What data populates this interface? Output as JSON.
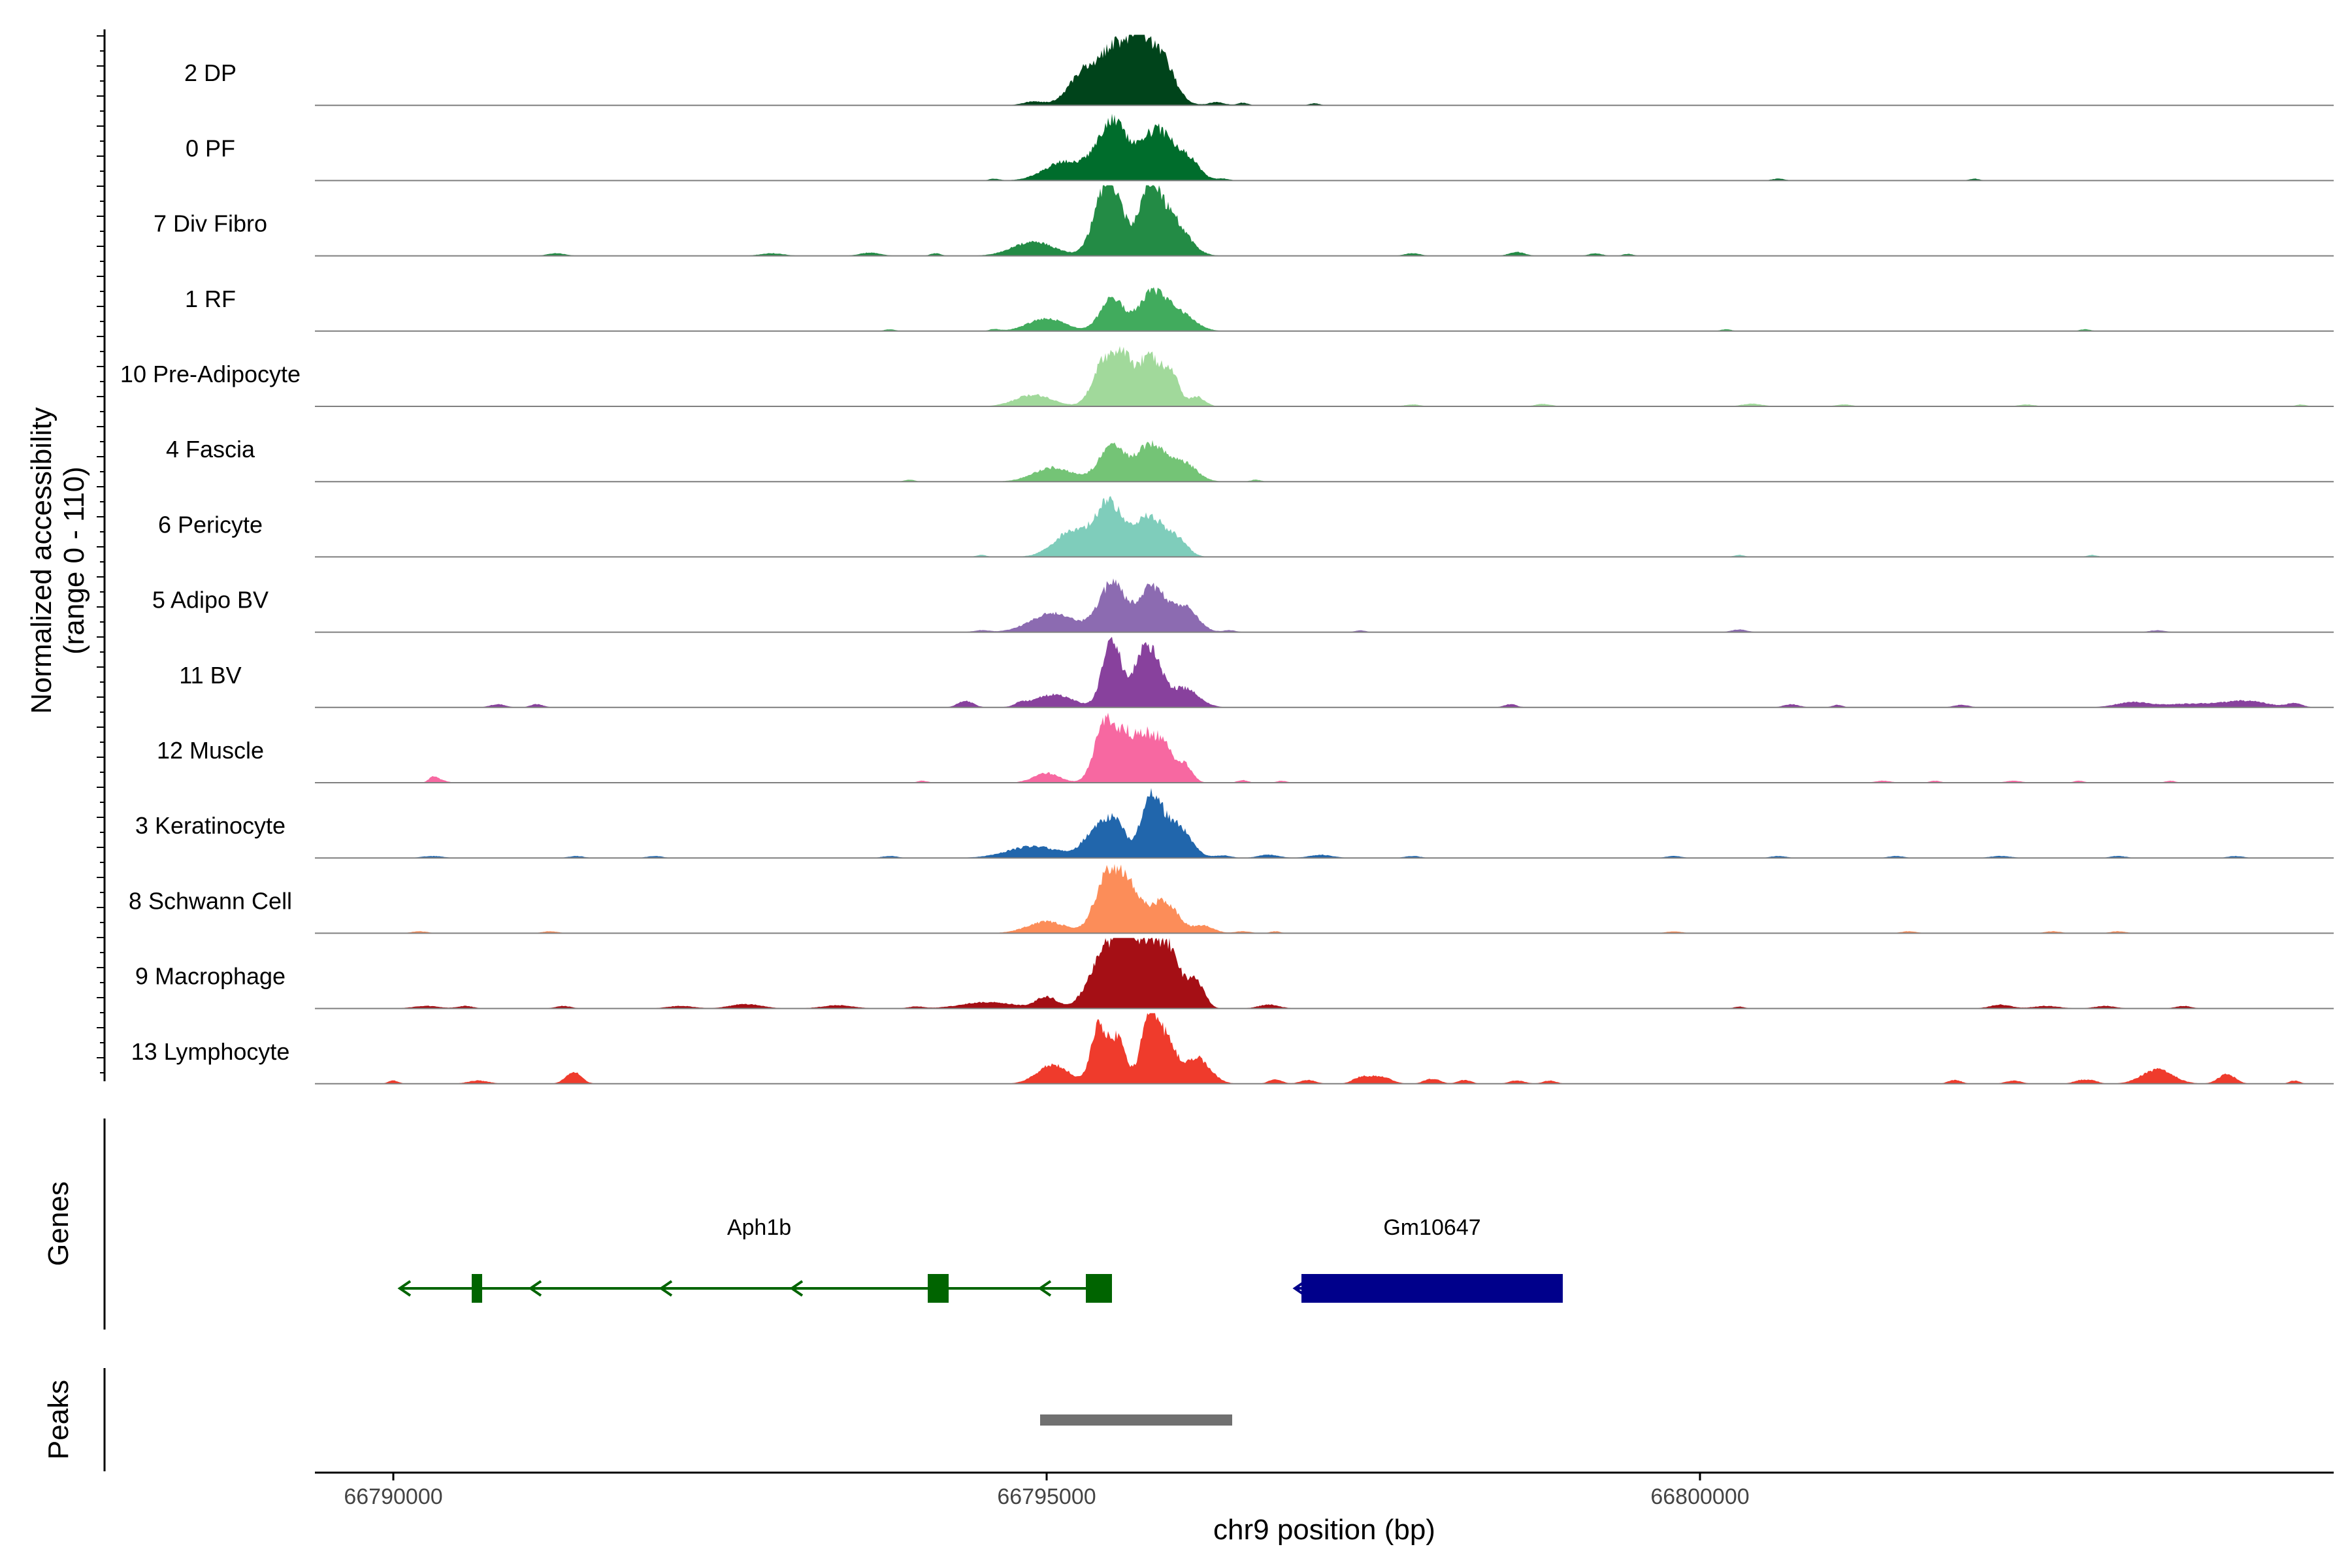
{
  "chart_data": {
    "type": "area",
    "title": "",
    "ylabel_line1": "Normalized accessibility",
    "ylabel_line2": "(range 0 - 110)",
    "y_range": [
      0,
      110
    ],
    "xlabel": "chr9 position (bp)",
    "x_range": [
      66789400,
      66804850
    ],
    "x_ticks": [
      66790000,
      66795000,
      66800000
    ],
    "x_tick_labels": [
      "66790000",
      "66795000",
      "66800000"
    ],
    "series": [
      {
        "name": "2 DP",
        "color": "#00441b",
        "peaks": [
          [
            66795300,
            120,
            55
          ],
          [
            66795550,
            110,
            90
          ],
          [
            66795850,
            110,
            85
          ],
          [
            66795700,
            60,
            55
          ],
          [
            66794900,
            80,
            6
          ],
          [
            66796300,
            60,
            5
          ],
          [
            66796500,
            40,
            4
          ],
          [
            66797050,
            40,
            3
          ]
        ]
      },
      {
        "name": "0 PF",
        "color": "#006d2c",
        "peaks": [
          [
            66795150,
            160,
            30
          ],
          [
            66795500,
            110,
            90
          ],
          [
            66795850,
            130,
            80
          ],
          [
            66796100,
            80,
            25
          ],
          [
            66794600,
            40,
            3
          ],
          [
            66796350,
            50,
            3
          ],
          [
            66800600,
            50,
            3
          ],
          [
            66802100,
            40,
            3
          ]
        ]
      },
      {
        "name": "7 Div Fibro",
        "color": "#238b45",
        "peaks": [
          [
            66794900,
            160,
            22
          ],
          [
            66795450,
            90,
            100
          ],
          [
            66795550,
            70,
            40
          ],
          [
            66795780,
            80,
            95
          ],
          [
            66795950,
            120,
            60
          ],
          [
            66791250,
            70,
            4
          ],
          [
            66792900,
            90,
            4
          ],
          [
            66793650,
            80,
            5
          ],
          [
            66794150,
            40,
            4
          ],
          [
            66797800,
            60,
            4
          ],
          [
            66798600,
            60,
            6
          ],
          [
            66799200,
            50,
            4
          ],
          [
            66799450,
            40,
            3
          ]
        ]
      },
      {
        "name": "1 RF",
        "color": "#41ab5d",
        "peaks": [
          [
            66795000,
            140,
            20
          ],
          [
            66795500,
            90,
            50
          ],
          [
            66795800,
            100,
            55
          ],
          [
            66796000,
            120,
            30
          ],
          [
            66793800,
            40,
            3
          ],
          [
            66794600,
            40,
            3
          ],
          [
            66800200,
            40,
            3
          ],
          [
            66802950,
            40,
            3
          ]
        ]
      },
      {
        "name": "10 Pre-Adipocyte",
        "color": "#a1d99b",
        "peaks": [
          [
            66794900,
            140,
            18
          ],
          [
            66795450,
            90,
            75
          ],
          [
            66795600,
            60,
            60
          ],
          [
            66795780,
            80,
            80
          ],
          [
            66795950,
            60,
            55
          ],
          [
            66796150,
            60,
            15
          ],
          [
            66798800,
            60,
            4
          ],
          [
            66797800,
            60,
            3
          ],
          [
            66800400,
            80,
            4
          ],
          [
            66801100,
            60,
            3
          ],
          [
            66802500,
            60,
            3
          ],
          [
            66804600,
            40,
            3
          ]
        ]
      },
      {
        "name": "4 Fascia",
        "color": "#74c476",
        "peaks": [
          [
            66795050,
            150,
            22
          ],
          [
            66795500,
            100,
            55
          ],
          [
            66795800,
            110,
            58
          ],
          [
            66796050,
            100,
            28
          ],
          [
            66793950,
            40,
            3
          ],
          [
            66796600,
            40,
            3
          ]
        ]
      },
      {
        "name": "6 Pericyte",
        "color": "#7fcdbb",
        "peaks": [
          [
            66795200,
            140,
            40
          ],
          [
            66795480,
            100,
            80
          ],
          [
            66795780,
            110,
            65
          ],
          [
            66796000,
            80,
            25
          ],
          [
            66794500,
            40,
            3
          ],
          [
            66800300,
            40,
            3
          ],
          [
            66803000,
            40,
            3
          ]
        ]
      },
      {
        "name": "5 Adipo BV",
        "color": "#8c6bb1",
        "peaks": [
          [
            66795050,
            170,
            30
          ],
          [
            66795500,
            100,
            75
          ],
          [
            66795800,
            100,
            70
          ],
          [
            66796050,
            100,
            40
          ],
          [
            66794500,
            60,
            3
          ],
          [
            66796400,
            50,
            3
          ],
          [
            66797400,
            40,
            3
          ],
          [
            66800300,
            60,
            4
          ],
          [
            66803500,
            60,
            3
          ]
        ]
      },
      {
        "name": "11 BV",
        "color": "#88419d",
        "peaks": [
          [
            66795050,
            150,
            20
          ],
          [
            66795500,
            70,
            110
          ],
          [
            66795700,
            60,
            40
          ],
          [
            66795800,
            80,
            80
          ],
          [
            66796050,
            110,
            30
          ],
          [
            66794380,
            60,
            10
          ],
          [
            66794800,
            40,
            5
          ],
          [
            66790800,
            60,
            5
          ],
          [
            66791100,
            50,
            5
          ],
          [
            66798550,
            50,
            5
          ],
          [
            66800700,
            60,
            5
          ],
          [
            66801050,
            40,
            4
          ],
          [
            66802000,
            60,
            4
          ],
          [
            66803300,
            120,
            7
          ],
          [
            66803800,
            300,
            6
          ],
          [
            66804200,
            150,
            8
          ],
          [
            66804550,
            60,
            6
          ]
        ]
      },
      {
        "name": "12 Muscle",
        "color": "#f768a1",
        "peaks": [
          [
            66795000,
            100,
            15
          ],
          [
            66795450,
            80,
            95
          ],
          [
            66795600,
            60,
            55
          ],
          [
            66795750,
            80,
            75
          ],
          [
            66795900,
            60,
            55
          ],
          [
            66796050,
            60,
            30
          ],
          [
            66790350,
            50,
            5
          ],
          [
            66790300,
            30,
            7
          ],
          [
            66794050,
            40,
            3
          ],
          [
            66796500,
            40,
            4
          ],
          [
            66796800,
            40,
            3
          ],
          [
            66801400,
            60,
            3
          ],
          [
            66801800,
            40,
            3
          ],
          [
            66802400,
            60,
            3
          ],
          [
            66802900,
            40,
            3
          ],
          [
            66803600,
            40,
            3
          ]
        ]
      },
      {
        "name": "3 Keratinocyte",
        "color": "#2166ac",
        "peaks": [
          [
            66794900,
            200,
            18
          ],
          [
            66795420,
            110,
            55
          ],
          [
            66795550,
            60,
            30
          ],
          [
            66795800,
            80,
            95
          ],
          [
            66796000,
            100,
            50
          ],
          [
            66796350,
            60,
            4
          ],
          [
            66796700,
            80,
            5
          ],
          [
            66797100,
            90,
            5
          ],
          [
            66790300,
            80,
            3
          ],
          [
            66791400,
            60,
            3
          ],
          [
            66792000,
            60,
            3
          ],
          [
            66793800,
            60,
            3
          ],
          [
            66797800,
            60,
            3
          ],
          [
            66799800,
            60,
            3
          ],
          [
            66800600,
            60,
            3
          ],
          [
            66801500,
            60,
            3
          ],
          [
            66802300,
            80,
            3
          ],
          [
            66803200,
            60,
            3
          ],
          [
            66804100,
            60,
            3
          ]
        ]
      },
      {
        "name": "8 Schwann Cell",
        "color": "#fc8d59",
        "peaks": [
          [
            66795000,
            150,
            18
          ],
          [
            66795450,
            90,
            75
          ],
          [
            66795620,
            100,
            75
          ],
          [
            66795900,
            100,
            50
          ],
          [
            66796200,
            80,
            12
          ],
          [
            66796500,
            60,
            3
          ],
          [
            66790200,
            60,
            3
          ],
          [
            66791200,
            60,
            3
          ],
          [
            66796750,
            40,
            3
          ],
          [
            66799800,
            60,
            3
          ],
          [
            66801600,
            60,
            3
          ],
          [
            66802700,
            60,
            3
          ],
          [
            66803200,
            60,
            3
          ]
        ]
      },
      {
        "name": "9 Macrophage",
        "color": "#a50f15",
        "peaks": [
          [
            66794550,
            200,
            10
          ],
          [
            66795000,
            80,
            18
          ],
          [
            66795450,
            120,
            85
          ],
          [
            66795600,
            80,
            70
          ],
          [
            66795780,
            110,
            85
          ],
          [
            66795950,
            90,
            70
          ],
          [
            66796150,
            60,
            40
          ],
          [
            66796700,
            80,
            6
          ],
          [
            66790250,
            100,
            4
          ],
          [
            66790550,
            60,
            4
          ],
          [
            66791300,
            60,
            4
          ],
          [
            66792200,
            100,
            4
          ],
          [
            66792700,
            120,
            7
          ],
          [
            66793400,
            120,
            5
          ],
          [
            66794000,
            60,
            3
          ],
          [
            66800300,
            40,
            3
          ],
          [
            66802300,
            80,
            6
          ],
          [
            66802650,
            100,
            4
          ],
          [
            66803100,
            80,
            4
          ],
          [
            66803700,
            60,
            4
          ]
        ]
      },
      {
        "name": "13 Lymphocyte",
        "color": "#ef3b2c",
        "peaks": [
          [
            66795050,
            120,
            30
          ],
          [
            66795400,
            60,
            90
          ],
          [
            66795550,
            60,
            70
          ],
          [
            66795780,
            60,
            95
          ],
          [
            66795900,
            80,
            70
          ],
          [
            66796150,
            100,
            40
          ],
          [
            66790000,
            40,
            5
          ],
          [
            66790650,
            80,
            5
          ],
          [
            66791380,
            60,
            18
          ],
          [
            66796750,
            50,
            7
          ],
          [
            66797000,
            60,
            6
          ],
          [
            66797400,
            60,
            9
          ],
          [
            66797550,
            80,
            12
          ],
          [
            66797950,
            60,
            8
          ],
          [
            66798200,
            50,
            6
          ],
          [
            66798600,
            60,
            5
          ],
          [
            66798850,
            50,
            5
          ],
          [
            66801950,
            50,
            6
          ],
          [
            66802400,
            60,
            5
          ],
          [
            66802900,
            50,
            5
          ],
          [
            66803000,
            50,
            5
          ],
          [
            66803500,
            120,
            22
          ],
          [
            66804000,
            60,
            6
          ],
          [
            66804050,
            60,
            10
          ],
          [
            66804550,
            40,
            5
          ]
        ]
      }
    ],
    "genes": {
      "label": "Genes",
      "items": [
        {
          "name": "Aph1b",
          "strand": "-",
          "color": "#006400",
          "start": 66790050,
          "end": 66795500,
          "label_x": 66792800,
          "arrow_x": [
            66790050,
            66791050,
            66792050,
            66793050,
            66794950
          ],
          "exons": [
            [
              66790600,
              66790680
            ],
            [
              66794090,
              66794250
            ],
            [
              66795300,
              66795500
            ]
          ]
        },
        {
          "name": "Gm10647",
          "strand": "-",
          "color": "#00008b",
          "start": 66796900,
          "end": 66798950,
          "label_x": 66797950,
          "arrow_x": [
            66796900
          ],
          "exons": [
            [
              66796950,
              66798950
            ]
          ]
        }
      ]
    },
    "peaks_track": {
      "label": "Peaks",
      "color": "#707070",
      "regions": [
        [
          66794950,
          66796420
        ]
      ]
    }
  }
}
